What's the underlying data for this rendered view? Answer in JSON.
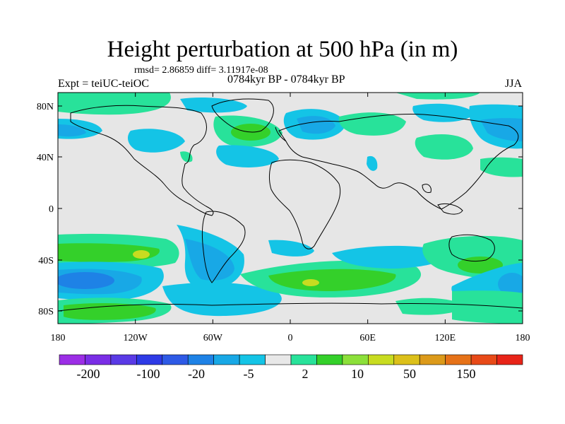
{
  "title": "Height perturbation at 500 hPa (in m)",
  "stats": "rmsd= 2.86859 diff= 3.11917e-08",
  "experiment": "Expt = teiUC-teiOC",
  "period": "0784kyr BP - 0784kyr BP",
  "season": "JJA",
  "map": {
    "lat_ticks": [
      "80N",
      "40N",
      "0",
      "40S",
      "80S"
    ],
    "lon_ticks": [
      "180",
      "120W",
      "60W",
      "0",
      "60E",
      "120E",
      "180"
    ],
    "background_color": "#e6e6e6"
  },
  "colorbar": {
    "colors": [
      "#9c2ee6",
      "#7a2ee6",
      "#5a3ae6",
      "#2e3ae6",
      "#2e5ae6",
      "#1e82e6",
      "#18a8e6",
      "#14c4e6",
      "#e8e8e8",
      "#28e29a",
      "#34d02a",
      "#8ce03a",
      "#c8dc20",
      "#dcc01a",
      "#dc9a1a",
      "#e67218",
      "#e84a18",
      "#e82418"
    ],
    "labels": [
      "-200",
      "-100",
      "-20",
      "-5",
      "2",
      "10",
      "50",
      "150"
    ]
  }
}
